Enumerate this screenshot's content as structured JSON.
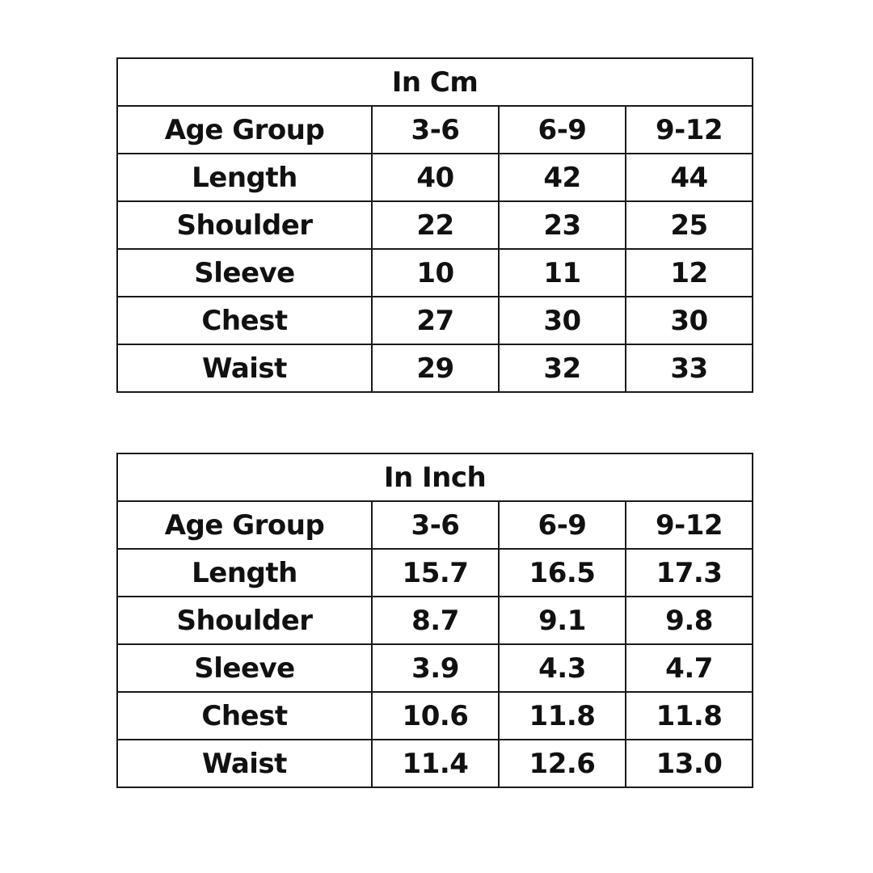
{
  "tables": [
    {
      "caption": "In Cm",
      "header": {
        "label": "Age Group",
        "ages": [
          "3-6",
          "6-9",
          "9-12"
        ]
      },
      "rows": [
        {
          "label": "Length",
          "values": [
            "40",
            "42",
            "44"
          ]
        },
        {
          "label": "Shoulder",
          "values": [
            "22",
            "23",
            "25"
          ]
        },
        {
          "label": "Sleeve",
          "values": [
            "10",
            "11",
            "12"
          ]
        },
        {
          "label": "Chest",
          "values": [
            "27",
            "30",
            "30"
          ]
        },
        {
          "label": "Waist",
          "values": [
            "29",
            "32",
            "33"
          ]
        }
      ]
    },
    {
      "caption": "In Inch",
      "header": {
        "label": "Age Group",
        "ages": [
          "3-6",
          "6-9",
          "9-12"
        ]
      },
      "rows": [
        {
          "label": "Length",
          "values": [
            "15.7",
            "16.5",
            "17.3"
          ]
        },
        {
          "label": "Shoulder",
          "values": [
            "8.7",
            "9.1",
            "9.8"
          ]
        },
        {
          "label": "Sleeve",
          "values": [
            "3.9",
            "4.3",
            "4.7"
          ]
        },
        {
          "label": "Chest",
          "values": [
            "10.6",
            "11.8",
            "11.8"
          ]
        },
        {
          "label": "Waist",
          "values": [
            "11.4",
            "12.6",
            "13.0"
          ]
        }
      ]
    }
  ]
}
